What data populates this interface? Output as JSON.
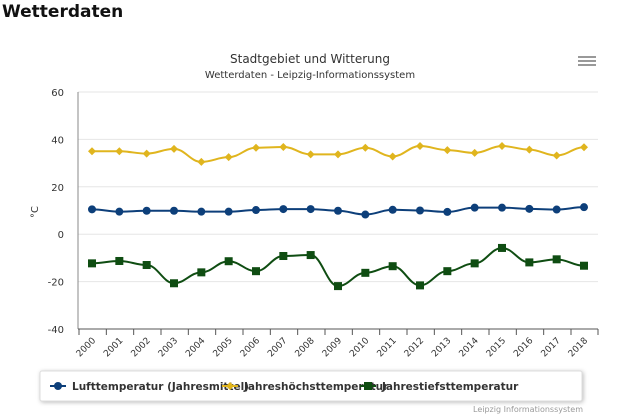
{
  "page": {
    "title": "Wetterdaten"
  },
  "chart_data": {
    "type": "line",
    "title": "Stadtgebiet und Witterung",
    "subtitle": "Wetterdaten - Leipzig-Informationssystem",
    "xlabel": "",
    "ylabel": "°C",
    "ylim": [
      -40,
      60
    ],
    "yticks": [
      -40,
      -20,
      0,
      20,
      40,
      60
    ],
    "grid": true,
    "legend": "bottom",
    "categories": [
      "2000",
      "2001",
      "2002",
      "2003",
      "2004",
      "2005",
      "2006",
      "2007",
      "2008",
      "2009",
      "2010",
      "2011",
      "2012",
      "2013",
      "2014",
      "2015",
      "2016",
      "2017",
      "2018"
    ],
    "series": [
      {
        "name": "Lufttemperatur (Jahresmittel)",
        "color": "#0d3f7a",
        "marker": "circle",
        "values": [
          10.5,
          9.5,
          9.9,
          9.9,
          9.5,
          9.5,
          10.2,
          10.6,
          10.6,
          9.9,
          8.3,
          10.3,
          10.0,
          9.4,
          11.2,
          11.2,
          10.7,
          10.4,
          11.4
        ]
      },
      {
        "name": "Jahreshöchsttemperatur",
        "color": "#e0b51e",
        "marker": "diamond",
        "values": [
          35.0,
          35.0,
          34.0,
          36.0,
          30.5,
          32.5,
          36.5,
          36.8,
          33.7,
          33.7,
          36.5,
          32.8,
          37.2,
          35.5,
          34.3,
          37.2,
          35.7,
          33.2,
          36.7
        ]
      },
      {
        "name": "Jahrestiefsttemperatur",
        "color": "#0f4d12",
        "marker": "square",
        "values": [
          -12.3,
          -11.3,
          -13.0,
          -20.7,
          -16.1,
          -11.4,
          -15.6,
          -9.2,
          -8.8,
          -21.9,
          -16.3,
          -13.5,
          -21.6,
          -15.6,
          -12.3,
          -5.8,
          -11.9,
          -10.6,
          -13.3
        ]
      }
    ],
    "credit": "Leipzig Informationssystem"
  },
  "menu_icon": "hamburger-menu-icon"
}
